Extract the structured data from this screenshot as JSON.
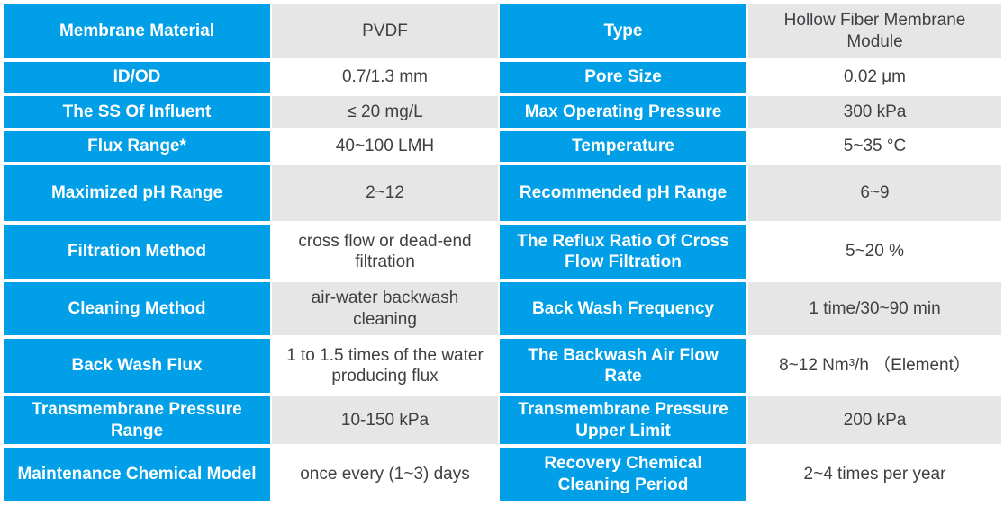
{
  "colors": {
    "header_bg": "#019FE8",
    "header_text": "#FFFFFF",
    "row_bg": "#FFFFFF",
    "row_alt_bg": "#E6E6E6",
    "value_text": "#3F3F44"
  },
  "table": {
    "description": "Membrane module specification table",
    "rows": [
      {
        "label_left": "Membrane Material",
        "value_left": "PVDF",
        "label_right": "Type",
        "value_right": "Hollow Fiber Membrane Module"
      },
      {
        "label_left": "ID/OD",
        "value_left": "0.7/1.3 mm",
        "label_right": "Pore Size",
        "value_right": "0.02 μm"
      },
      {
        "label_left": "The SS Of Influent",
        "value_left": "≤ 20 mg/L",
        "label_right": "Max Operating Pressure",
        "value_right": "300 kPa"
      },
      {
        "label_left": "Flux Range*",
        "value_left": "40~100 LMH",
        "label_right": "Temperature",
        "value_right": "5~35 °C"
      },
      {
        "label_left": "Maximized pH Range",
        "value_left": "2~12",
        "label_right": "Recommended pH Range",
        "value_right": "6~9"
      },
      {
        "label_left": "Filtration Method",
        "value_left": "cross flow or dead-end filtration",
        "label_right": "The Reflux Ratio Of Cross Flow Filtration",
        "value_right": "5~20 %"
      },
      {
        "label_left": "Cleaning Method",
        "value_left": "air-water backwash cleaning",
        "label_right": "Back Wash Frequency",
        "value_right": "1 time/30~90 min"
      },
      {
        "label_left": "Back Wash Flux",
        "value_left": "1 to 1.5 times of the water producing flux",
        "label_right": "The Backwash Air Flow Rate",
        "value_right": "8~12 Nm³/h （Element）"
      },
      {
        "label_left": "Transmembrane Pressure Range",
        "value_left": "10-150 kPa",
        "label_right": "Transmembrane Pressure Upper Limit",
        "value_right": "200 kPa"
      },
      {
        "label_left": "Maintenance Chemical Model",
        "value_left": "once every (1~3) days",
        "label_right": "Recovery Chemical Cleaning Period",
        "value_right": "2~4 times per year"
      }
    ]
  }
}
